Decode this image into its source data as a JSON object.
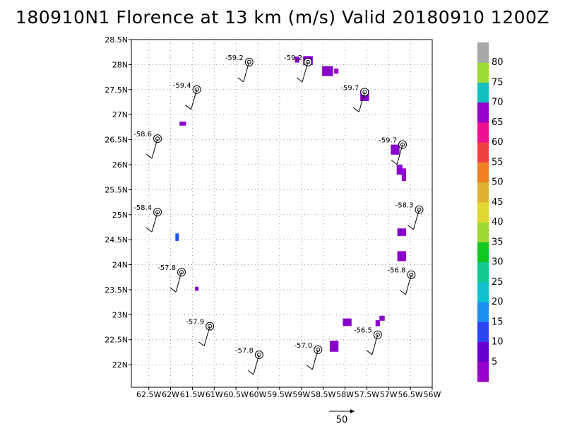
{
  "title": "180910N1 Florence at 13 km (m/s) Valid 20180910 1200Z",
  "map": {
    "lon_min": -62.9,
    "lon_max": -56.0,
    "lat_min": 21.55,
    "lat_max": 28.5,
    "x_ticks": [
      {
        "lon": -62.5,
        "label": "62.5W"
      },
      {
        "lon": -62.0,
        "label": "62W"
      },
      {
        "lon": -61.5,
        "label": "61.5W"
      },
      {
        "lon": -61.0,
        "label": "61W"
      },
      {
        "lon": -60.5,
        "label": "60.5W"
      },
      {
        "lon": -60.0,
        "label": "60W"
      },
      {
        "lon": -59.5,
        "label": "59.5W"
      },
      {
        "lon": -59.0,
        "label": "59W"
      },
      {
        "lon": -58.5,
        "label": "58.5W"
      },
      {
        "lon": -58.0,
        "label": "58W"
      },
      {
        "lon": -57.5,
        "label": "57.5W"
      },
      {
        "lon": -57.0,
        "label": "57W"
      },
      {
        "lon": -56.5,
        "label": "56.5W"
      },
      {
        "lon": -56.0,
        "label": "56W"
      }
    ],
    "y_ticks": [
      {
        "lat": 22.0,
        "label": "22N"
      },
      {
        "lat": 22.5,
        "label": "22.5N"
      },
      {
        "lat": 23.0,
        "label": "23N"
      },
      {
        "lat": 23.5,
        "label": "23.5N"
      },
      {
        "lat": 24.0,
        "label": "24N"
      },
      {
        "lat": 24.5,
        "label": "24.5N"
      },
      {
        "lat": 25.0,
        "label": "25N"
      },
      {
        "lat": 25.5,
        "label": "25.5N"
      },
      {
        "lat": 26.0,
        "label": "26N"
      },
      {
        "lat": 26.5,
        "label": "26.5N"
      },
      {
        "lat": 27.0,
        "label": "27N"
      },
      {
        "lat": 27.5,
        "label": "27.5N"
      },
      {
        "lat": 28.0,
        "label": "28N"
      },
      {
        "lat": 28.5,
        "label": "28.5N"
      }
    ],
    "grid": true,
    "stations": [
      {
        "lon": -60.2,
        "lat": 28.05,
        "label": "-59.2"
      },
      {
        "lon": -58.85,
        "lat": 28.05,
        "label": "-59.2"
      },
      {
        "lon": -61.4,
        "lat": 27.5,
        "label": "-59.4"
      },
      {
        "lon": -57.55,
        "lat": 27.45,
        "label": "-59.7"
      },
      {
        "lon": -62.3,
        "lat": 26.52,
        "label": "-58.6"
      },
      {
        "lon": -56.68,
        "lat": 26.4,
        "label": "-59.7"
      },
      {
        "lon": -62.3,
        "lat": 25.05,
        "label": "-58.4"
      },
      {
        "lon": -56.3,
        "lat": 25.1,
        "label": "-58.3"
      },
      {
        "lon": -61.75,
        "lat": 23.85,
        "label": "-57.8"
      },
      {
        "lon": -56.48,
        "lat": 23.8,
        "label": "-56.8"
      },
      {
        "lon": -61.1,
        "lat": 22.77,
        "label": "-57.9"
      },
      {
        "lon": -57.25,
        "lat": 22.6,
        "label": "-56.5"
      },
      {
        "lon": -58.62,
        "lat": 22.3,
        "label": "-57.0"
      },
      {
        "lon": -59.97,
        "lat": 22.2,
        "label": "-57.8"
      }
    ],
    "wind_cells": [
      {
        "lon": -61.72,
        "lat": 26.82,
        "w": 0.15,
        "h": 0.08,
        "color": "#8800cc"
      },
      {
        "lon": -58.85,
        "lat": 28.08,
        "w": 0.22,
        "h": 0.18,
        "color": "#8800cc"
      },
      {
        "lon": -59.1,
        "lat": 28.1,
        "w": 0.1,
        "h": 0.12,
        "color": "#8800cc"
      },
      {
        "lon": -58.4,
        "lat": 27.87,
        "w": 0.25,
        "h": 0.2,
        "color": "#8800cc"
      },
      {
        "lon": -58.2,
        "lat": 27.87,
        "w": 0.1,
        "h": 0.1,
        "color": "#9900cc"
      },
      {
        "lon": -57.55,
        "lat": 27.38,
        "w": 0.2,
        "h": 0.22,
        "color": "#8800cc"
      },
      {
        "lon": -56.85,
        "lat": 26.3,
        "w": 0.2,
        "h": 0.2,
        "color": "#8800cc"
      },
      {
        "lon": -56.75,
        "lat": 25.9,
        "w": 0.13,
        "h": 0.2,
        "color": "#8800cc"
      },
      {
        "lon": -56.65,
        "lat": 25.8,
        "w": 0.1,
        "h": 0.25,
        "color": "#9900cc"
      },
      {
        "lon": -56.7,
        "lat": 24.65,
        "w": 0.2,
        "h": 0.15,
        "color": "#8800cc"
      },
      {
        "lon": -56.7,
        "lat": 24.17,
        "w": 0.2,
        "h": 0.2,
        "color": "#8800cc"
      },
      {
        "lon": -61.85,
        "lat": 24.55,
        "w": 0.08,
        "h": 0.15,
        "color": "#2255ee"
      },
      {
        "lon": -61.4,
        "lat": 23.52,
        "w": 0.08,
        "h": 0.08,
        "color": "#8800cc"
      },
      {
        "lon": -57.95,
        "lat": 22.85,
        "w": 0.2,
        "h": 0.15,
        "color": "#8800cc"
      },
      {
        "lon": -57.15,
        "lat": 22.93,
        "w": 0.12,
        "h": 0.1,
        "color": "#8800cc"
      },
      {
        "lon": -57.25,
        "lat": 22.83,
        "w": 0.1,
        "h": 0.12,
        "color": "#8800cc"
      },
      {
        "lon": -58.25,
        "lat": 22.37,
        "w": 0.2,
        "h": 0.22,
        "color": "#8800cc"
      }
    ]
  },
  "colorbar": {
    "labels": [
      "5",
      "10",
      "15",
      "20",
      "25",
      "30",
      "35",
      "40",
      "45",
      "50",
      "55",
      "60",
      "65",
      "70",
      "75",
      "80"
    ],
    "colors": [
      "#9900cc",
      "#6a00d0",
      "#2b45f0",
      "#1a90f0",
      "#10c0d0",
      "#10c890",
      "#10c820",
      "#a0d830",
      "#e0d830",
      "#e0b030",
      "#f08020",
      "#f04040",
      "#ee1090",
      "#9900cc",
      "#10c0c0",
      "#99dd30",
      "#a8a8a8"
    ]
  },
  "scale": {
    "label": "50"
  }
}
